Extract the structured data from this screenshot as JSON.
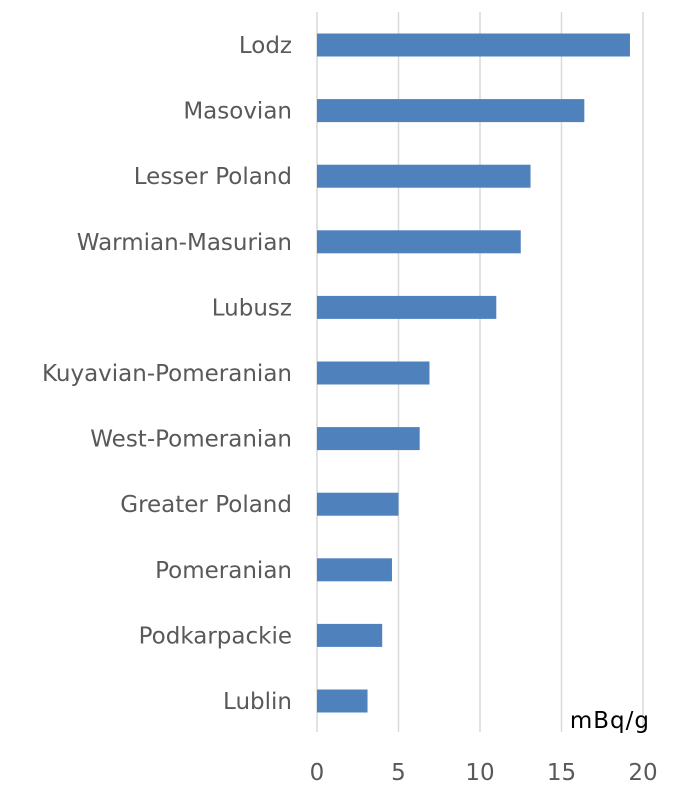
{
  "chart_data": {
    "type": "bar",
    "orientation": "horizontal",
    "categories": [
      "Lodz",
      "Masovian",
      "Lesser Poland",
      "Warmian-Masurian",
      "Lubusz",
      "Kuyavian-Pomeranian",
      "West-Pomeranian",
      "Greater Poland",
      "Pomeranian",
      "Podkarpackie",
      "Lublin"
    ],
    "values": [
      19.2,
      16.4,
      13.1,
      12.5,
      11.0,
      6.9,
      6.3,
      5.0,
      4.6,
      4.0,
      3.1
    ],
    "x_unit": "mBq/g",
    "xlim": [
      0,
      20
    ],
    "x_ticks": [
      0,
      5,
      10,
      15,
      20
    ],
    "grid": true,
    "bar_color": "#4f81bd",
    "label_color": "#595959",
    "grid_color": "#d9d9d9"
  }
}
